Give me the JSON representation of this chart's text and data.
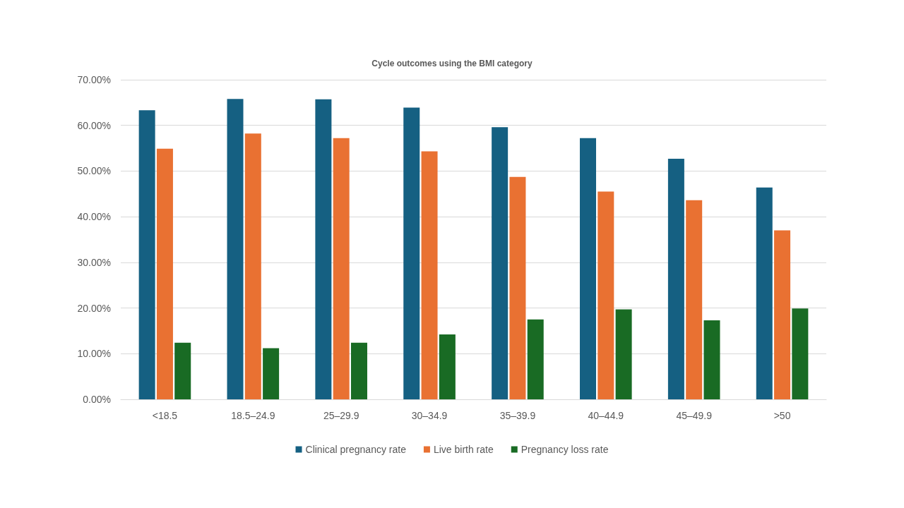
{
  "chart_data": {
    "type": "bar",
    "title": "Cycle outcomes using the BMI category",
    "categories": [
      "<18.5",
      "18.5–24.9",
      "25–29.9",
      "30–34.9",
      "35–39.9",
      "40–44.9",
      "45–49.9",
      ">50"
    ],
    "series": [
      {
        "name": "Clinical pregnancy rate",
        "color": "#156082",
        "values": [
          63.3,
          65.8,
          65.7,
          63.9,
          59.6,
          57.2,
          52.7,
          46.4
        ]
      },
      {
        "name": "Live birth rate",
        "color": "#e97132",
        "values": [
          54.9,
          58.2,
          57.2,
          54.3,
          48.7,
          45.5,
          43.6,
          37.0
        ]
      },
      {
        "name": "Pregnancy loss rate",
        "color": "#196b24",
        "values": [
          12.4,
          11.2,
          12.4,
          14.2,
          17.5,
          19.7,
          17.3,
          19.9
        ]
      }
    ],
    "ylim": [
      0,
      70
    ],
    "yticks": [
      {
        "value": 0,
        "label": "0.00%"
      },
      {
        "value": 10,
        "label": "10.00%"
      },
      {
        "value": 20,
        "label": "20.00%"
      },
      {
        "value": 30,
        "label": "30.00%"
      },
      {
        "value": 40,
        "label": "40.00%"
      },
      {
        "value": 50,
        "label": "50.00%"
      },
      {
        "value": 60,
        "label": "60.00%"
      },
      {
        "value": 70,
        "label": "70.00%"
      }
    ],
    "grid": "y",
    "legend": "bottom"
  }
}
